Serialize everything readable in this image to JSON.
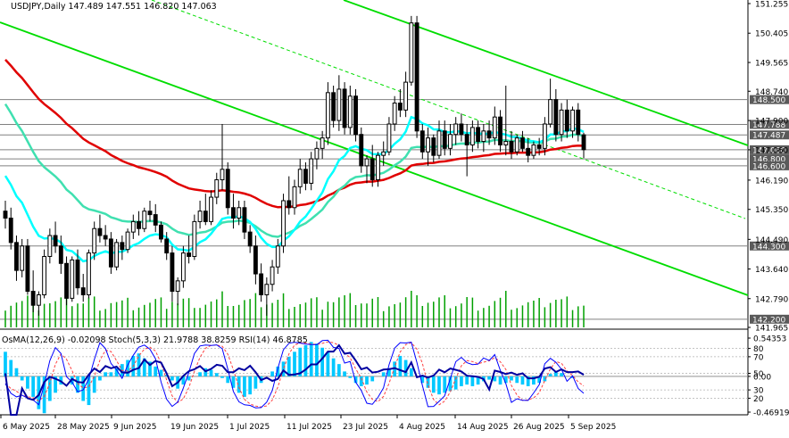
{
  "header": {
    "symbol_line": "USDJPY,Daily  147.489 147.551 146.820 147.063"
  },
  "indicator_header": {
    "text": "OsMA(12,26,9) -0.02098  Stoch(5,3,3) 21.9788 38.8259  RSI(14) 46.8785"
  },
  "colors": {
    "background": "#ffffff",
    "candle": "#000000",
    "volume": "#00a000",
    "ema_fast": "#00ffff",
    "ema_mid": "#40e0b0",
    "ema_slow": "#e00000",
    "trend": "#00dd00",
    "osma": "#00c8ff",
    "stoch_main": "#0000ff",
    "stoch_signal": "#ff4040",
    "rsi": "#0000a0",
    "label_bg": "#5a5a5a"
  },
  "chart_data": [
    {
      "type": "candlestick",
      "series_name": "USDJPY, Daily",
      "price_axis_ticks": [
        "151.255",
        "150.405",
        "149.565",
        "148.740",
        "147.900",
        "147.060",
        "146.190",
        "145.350",
        "144.490",
        "143.640",
        "142.790",
        "141.965"
      ],
      "highlighted_levels": [
        {
          "label": "148.500",
          "value": 148.5
        },
        {
          "label": "147.788",
          "value": 147.788
        },
        {
          "label": "147.487",
          "value": 147.487
        },
        {
          "label": "147.060",
          "value": 147.06
        },
        {
          "label": "146.800",
          "value": 146.8
        },
        {
          "label": "146.600",
          "value": 146.6
        },
        {
          "label": "144.300",
          "value": 144.3
        },
        {
          "label": "142.200",
          "value": 142.2
        }
      ],
      "x_labels": [
        "6 May 2025",
        "28 May 2025",
        "9 Jun 2025",
        "19 Jun 2025",
        "1 Jul 2025",
        "11 Jul 2025",
        "23 Jul 2025",
        "4 Aug 2025",
        "14 Aug 2025",
        "26 Aug 2025",
        "5 Sep 2025"
      ],
      "ylim": [
        141.965,
        151.255
      ],
      "candles": [
        {
          "o": 145.3,
          "h": 145.6,
          "l": 144.8,
          "c": 145.1
        },
        {
          "o": 145.1,
          "h": 145.4,
          "l": 144.2,
          "c": 144.4
        },
        {
          "o": 144.4,
          "h": 144.6,
          "l": 143.3,
          "c": 143.6
        },
        {
          "o": 143.6,
          "h": 144.5,
          "l": 143.4,
          "c": 144.3
        },
        {
          "o": 144.3,
          "h": 144.5,
          "l": 142.9,
          "c": 143.0
        },
        {
          "o": 143.0,
          "h": 143.6,
          "l": 142.4,
          "c": 142.6
        },
        {
          "o": 142.6,
          "h": 143.0,
          "l": 142.3,
          "c": 142.9
        },
        {
          "o": 142.9,
          "h": 144.2,
          "l": 142.8,
          "c": 144.0
        },
        {
          "o": 144.0,
          "h": 144.8,
          "l": 143.8,
          "c": 144.6
        },
        {
          "o": 144.6,
          "h": 145.0,
          "l": 144.1,
          "c": 144.3
        },
        {
          "o": 144.3,
          "h": 144.6,
          "l": 143.5,
          "c": 143.8
        },
        {
          "o": 143.8,
          "h": 144.0,
          "l": 142.6,
          "c": 142.8
        },
        {
          "o": 142.8,
          "h": 144.0,
          "l": 142.7,
          "c": 143.9
        },
        {
          "o": 143.9,
          "h": 144.2,
          "l": 142.9,
          "c": 143.1
        },
        {
          "o": 143.1,
          "h": 143.5,
          "l": 142.7,
          "c": 142.9
        },
        {
          "o": 142.9,
          "h": 144.2,
          "l": 142.8,
          "c": 144.1
        },
        {
          "o": 144.1,
          "h": 145.0,
          "l": 143.9,
          "c": 144.8
        },
        {
          "o": 144.8,
          "h": 145.2,
          "l": 144.4,
          "c": 144.6
        },
        {
          "o": 144.6,
          "h": 144.9,
          "l": 144.3,
          "c": 144.5
        },
        {
          "o": 144.5,
          "h": 144.7,
          "l": 143.5,
          "c": 143.7
        },
        {
          "o": 143.7,
          "h": 144.5,
          "l": 143.6,
          "c": 144.4
        },
        {
          "o": 144.4,
          "h": 144.6,
          "l": 143.9,
          "c": 144.2
        },
        {
          "o": 144.2,
          "h": 144.8,
          "l": 144.1,
          "c": 144.7
        },
        {
          "o": 144.7,
          "h": 145.2,
          "l": 144.5,
          "c": 145.0
        },
        {
          "o": 145.0,
          "h": 145.3,
          "l": 144.6,
          "c": 144.8
        },
        {
          "o": 144.8,
          "h": 145.4,
          "l": 144.7,
          "c": 145.3
        },
        {
          "o": 145.3,
          "h": 145.6,
          "l": 145.0,
          "c": 145.2
        },
        {
          "o": 145.2,
          "h": 145.5,
          "l": 144.7,
          "c": 144.9
        },
        {
          "o": 144.9,
          "h": 145.0,
          "l": 144.4,
          "c": 144.5
        },
        {
          "o": 144.5,
          "h": 144.7,
          "l": 143.9,
          "c": 144.1
        },
        {
          "o": 144.1,
          "h": 144.3,
          "l": 142.7,
          "c": 143.0
        },
        {
          "o": 143.0,
          "h": 143.4,
          "l": 142.6,
          "c": 143.3
        },
        {
          "o": 143.3,
          "h": 144.3,
          "l": 143.1,
          "c": 144.1
        },
        {
          "o": 144.1,
          "h": 144.6,
          "l": 143.8,
          "c": 144.0
        },
        {
          "o": 144.0,
          "h": 145.2,
          "l": 143.9,
          "c": 145.0
        },
        {
          "o": 145.0,
          "h": 145.6,
          "l": 144.8,
          "c": 145.3
        },
        {
          "o": 145.3,
          "h": 145.8,
          "l": 144.9,
          "c": 145.0
        },
        {
          "o": 145.0,
          "h": 145.9,
          "l": 144.9,
          "c": 145.7
        },
        {
          "o": 145.7,
          "h": 146.4,
          "l": 145.5,
          "c": 146.2
        },
        {
          "o": 146.2,
          "h": 147.8,
          "l": 145.9,
          "c": 146.5
        },
        {
          "o": 146.5,
          "h": 146.7,
          "l": 145.2,
          "c": 145.4
        },
        {
          "o": 145.4,
          "h": 145.8,
          "l": 144.8,
          "c": 145.1
        },
        {
          "o": 145.1,
          "h": 145.6,
          "l": 144.9,
          "c": 145.4
        },
        {
          "o": 145.4,
          "h": 145.6,
          "l": 144.5,
          "c": 144.7
        },
        {
          "o": 144.7,
          "h": 144.9,
          "l": 144.1,
          "c": 144.3
        },
        {
          "o": 144.3,
          "h": 144.6,
          "l": 143.2,
          "c": 143.5
        },
        {
          "o": 143.5,
          "h": 143.8,
          "l": 142.7,
          "c": 142.9
        },
        {
          "o": 142.9,
          "h": 143.4,
          "l": 142.3,
          "c": 143.2
        },
        {
          "o": 143.2,
          "h": 143.9,
          "l": 143.0,
          "c": 143.7
        },
        {
          "o": 143.7,
          "h": 144.5,
          "l": 143.5,
          "c": 144.3
        },
        {
          "o": 144.3,
          "h": 145.8,
          "l": 144.1,
          "c": 145.6
        },
        {
          "o": 145.6,
          "h": 146.3,
          "l": 145.2,
          "c": 145.4
        },
        {
          "o": 145.4,
          "h": 146.2,
          "l": 145.2,
          "c": 146.0
        },
        {
          "o": 146.0,
          "h": 146.8,
          "l": 145.8,
          "c": 146.5
        },
        {
          "o": 146.5,
          "h": 146.7,
          "l": 145.9,
          "c": 146.1
        },
        {
          "o": 146.1,
          "h": 147.0,
          "l": 145.9,
          "c": 146.8
        },
        {
          "o": 146.8,
          "h": 147.3,
          "l": 146.5,
          "c": 147.1
        },
        {
          "o": 147.1,
          "h": 147.6,
          "l": 146.8,
          "c": 147.4
        },
        {
          "o": 147.4,
          "h": 149.0,
          "l": 147.2,
          "c": 148.7
        },
        {
          "o": 148.7,
          "h": 148.9,
          "l": 147.7,
          "c": 147.9
        },
        {
          "o": 147.9,
          "h": 149.2,
          "l": 147.6,
          "c": 148.8
        },
        {
          "o": 148.8,
          "h": 149.0,
          "l": 147.5,
          "c": 147.7
        },
        {
          "o": 147.7,
          "h": 148.9,
          "l": 147.5,
          "c": 148.6
        },
        {
          "o": 148.6,
          "h": 148.8,
          "l": 147.3,
          "c": 147.5
        },
        {
          "o": 147.5,
          "h": 147.7,
          "l": 146.4,
          "c": 146.6
        },
        {
          "o": 146.6,
          "h": 146.9,
          "l": 146.1,
          "c": 146.8
        },
        {
          "o": 146.8,
          "h": 147.2,
          "l": 146.0,
          "c": 146.2
        },
        {
          "o": 146.2,
          "h": 147.0,
          "l": 146.0,
          "c": 146.9
        },
        {
          "o": 146.9,
          "h": 147.3,
          "l": 146.6,
          "c": 147.0
        },
        {
          "o": 147.0,
          "h": 148.0,
          "l": 146.9,
          "c": 147.8
        },
        {
          "o": 147.8,
          "h": 148.6,
          "l": 147.6,
          "c": 148.4
        },
        {
          "o": 148.4,
          "h": 148.8,
          "l": 148.0,
          "c": 148.2
        },
        {
          "o": 148.2,
          "h": 149.3,
          "l": 148.0,
          "c": 149.0
        },
        {
          "o": 149.0,
          "h": 150.9,
          "l": 148.9,
          "c": 150.7
        },
        {
          "o": 150.7,
          "h": 150.9,
          "l": 147.4,
          "c": 147.6
        },
        {
          "o": 147.6,
          "h": 147.8,
          "l": 146.8,
          "c": 147.0
        },
        {
          "o": 147.0,
          "h": 147.7,
          "l": 146.6,
          "c": 147.4
        },
        {
          "o": 147.4,
          "h": 147.5,
          "l": 146.7,
          "c": 146.9
        },
        {
          "o": 146.9,
          "h": 147.9,
          "l": 146.8,
          "c": 147.6
        },
        {
          "o": 147.6,
          "h": 147.9,
          "l": 146.9,
          "c": 147.1
        },
        {
          "o": 147.1,
          "h": 147.8,
          "l": 146.9,
          "c": 147.5
        },
        {
          "o": 147.5,
          "h": 148.0,
          "l": 147.2,
          "c": 147.8
        },
        {
          "o": 147.8,
          "h": 148.1,
          "l": 147.3,
          "c": 147.5
        },
        {
          "o": 147.5,
          "h": 147.8,
          "l": 146.3,
          "c": 147.2
        },
        {
          "o": 147.2,
          "h": 147.9,
          "l": 147.0,
          "c": 147.7
        },
        {
          "o": 147.7,
          "h": 147.9,
          "l": 147.1,
          "c": 147.3
        },
        {
          "o": 147.3,
          "h": 147.8,
          "l": 147.0,
          "c": 147.6
        },
        {
          "o": 147.6,
          "h": 147.9,
          "l": 147.2,
          "c": 147.4
        },
        {
          "o": 147.4,
          "h": 148.3,
          "l": 147.2,
          "c": 148.0
        },
        {
          "o": 148.0,
          "h": 148.2,
          "l": 147.0,
          "c": 147.2
        },
        {
          "o": 147.2,
          "h": 148.9,
          "l": 146.9,
          "c": 147.3
        },
        {
          "o": 147.3,
          "h": 147.6,
          "l": 146.8,
          "c": 147.0
        },
        {
          "o": 147.0,
          "h": 147.5,
          "l": 146.9,
          "c": 147.4
        },
        {
          "o": 147.4,
          "h": 147.6,
          "l": 147.0,
          "c": 147.1
        },
        {
          "o": 147.1,
          "h": 147.4,
          "l": 146.7,
          "c": 146.9
        },
        {
          "o": 146.9,
          "h": 147.3,
          "l": 146.8,
          "c": 147.2
        },
        {
          "o": 147.2,
          "h": 147.4,
          "l": 146.9,
          "c": 147.1
        },
        {
          "o": 147.1,
          "h": 148.0,
          "l": 146.9,
          "c": 147.8
        },
        {
          "o": 147.8,
          "h": 149.1,
          "l": 147.7,
          "c": 148.5
        },
        {
          "o": 148.5,
          "h": 148.8,
          "l": 147.3,
          "c": 147.5
        },
        {
          "o": 147.5,
          "h": 148.4,
          "l": 147.3,
          "c": 148.2
        },
        {
          "o": 148.2,
          "h": 148.5,
          "l": 147.4,
          "c": 147.6
        },
        {
          "o": 147.6,
          "h": 148.3,
          "l": 147.4,
          "c": 148.2
        },
        {
          "o": 148.2,
          "h": 148.4,
          "l": 147.3,
          "c": 147.5
        },
        {
          "o": 147.489,
          "h": 147.551,
          "l": 146.82,
          "c": 147.063
        }
      ]
    },
    {
      "type": "indicator",
      "title": "OsMA(12,26,9) -0.02098  Stoch(5,3,3) 21.9788 38.8259  RSI(14) 46.8785",
      "axis_ticks": [
        "0.54353",
        "80",
        "70",
        "50",
        "0.00",
        "30",
        "20",
        "-0.46919"
      ],
      "osma": [
        0.3,
        0.2,
        0.1,
        -0.05,
        -0.15,
        -0.25,
        -0.4,
        -0.45,
        -0.3,
        -0.2,
        -0.1,
        0.0,
        -0.1,
        -0.2,
        -0.3,
        -0.35,
        -0.2,
        -0.05,
        0.05,
        0.05,
        0.1,
        0.15,
        0.2,
        0.25,
        0.28,
        0.22,
        0.18,
        0.12,
        0.08,
        0.02,
        -0.05,
        -0.15,
        -0.1,
        -0.05,
        0.0,
        0.05,
        0.1,
        0.08,
        0.04,
        -0.02,
        -0.08,
        -0.14,
        -0.2,
        -0.25,
        -0.22,
        -0.15,
        -0.08,
        0.0,
        0.06,
        0.12,
        0.18,
        0.24,
        0.3,
        0.35,
        0.38,
        0.42,
        0.4,
        0.35,
        0.3,
        0.22,
        0.15,
        0.06,
        -0.02,
        -0.08,
        -0.12,
        -0.1,
        -0.06,
        0.0,
        0.05,
        0.1,
        0.18,
        0.25,
        0.2,
        0.1,
        0.0,
        -0.08,
        -0.14,
        -0.2,
        -0.22,
        -0.2,
        -0.18,
        -0.16,
        -0.12,
        -0.1,
        -0.12,
        -0.1,
        -0.06,
        -0.04,
        -0.06,
        -0.1,
        -0.08,
        -0.05,
        -0.08,
        -0.1,
        -0.12,
        -0.1,
        -0.08,
        -0.06,
        0.03,
        0.06,
        0.04,
        0.0,
        -0.02
      ]
    }
  ]
}
